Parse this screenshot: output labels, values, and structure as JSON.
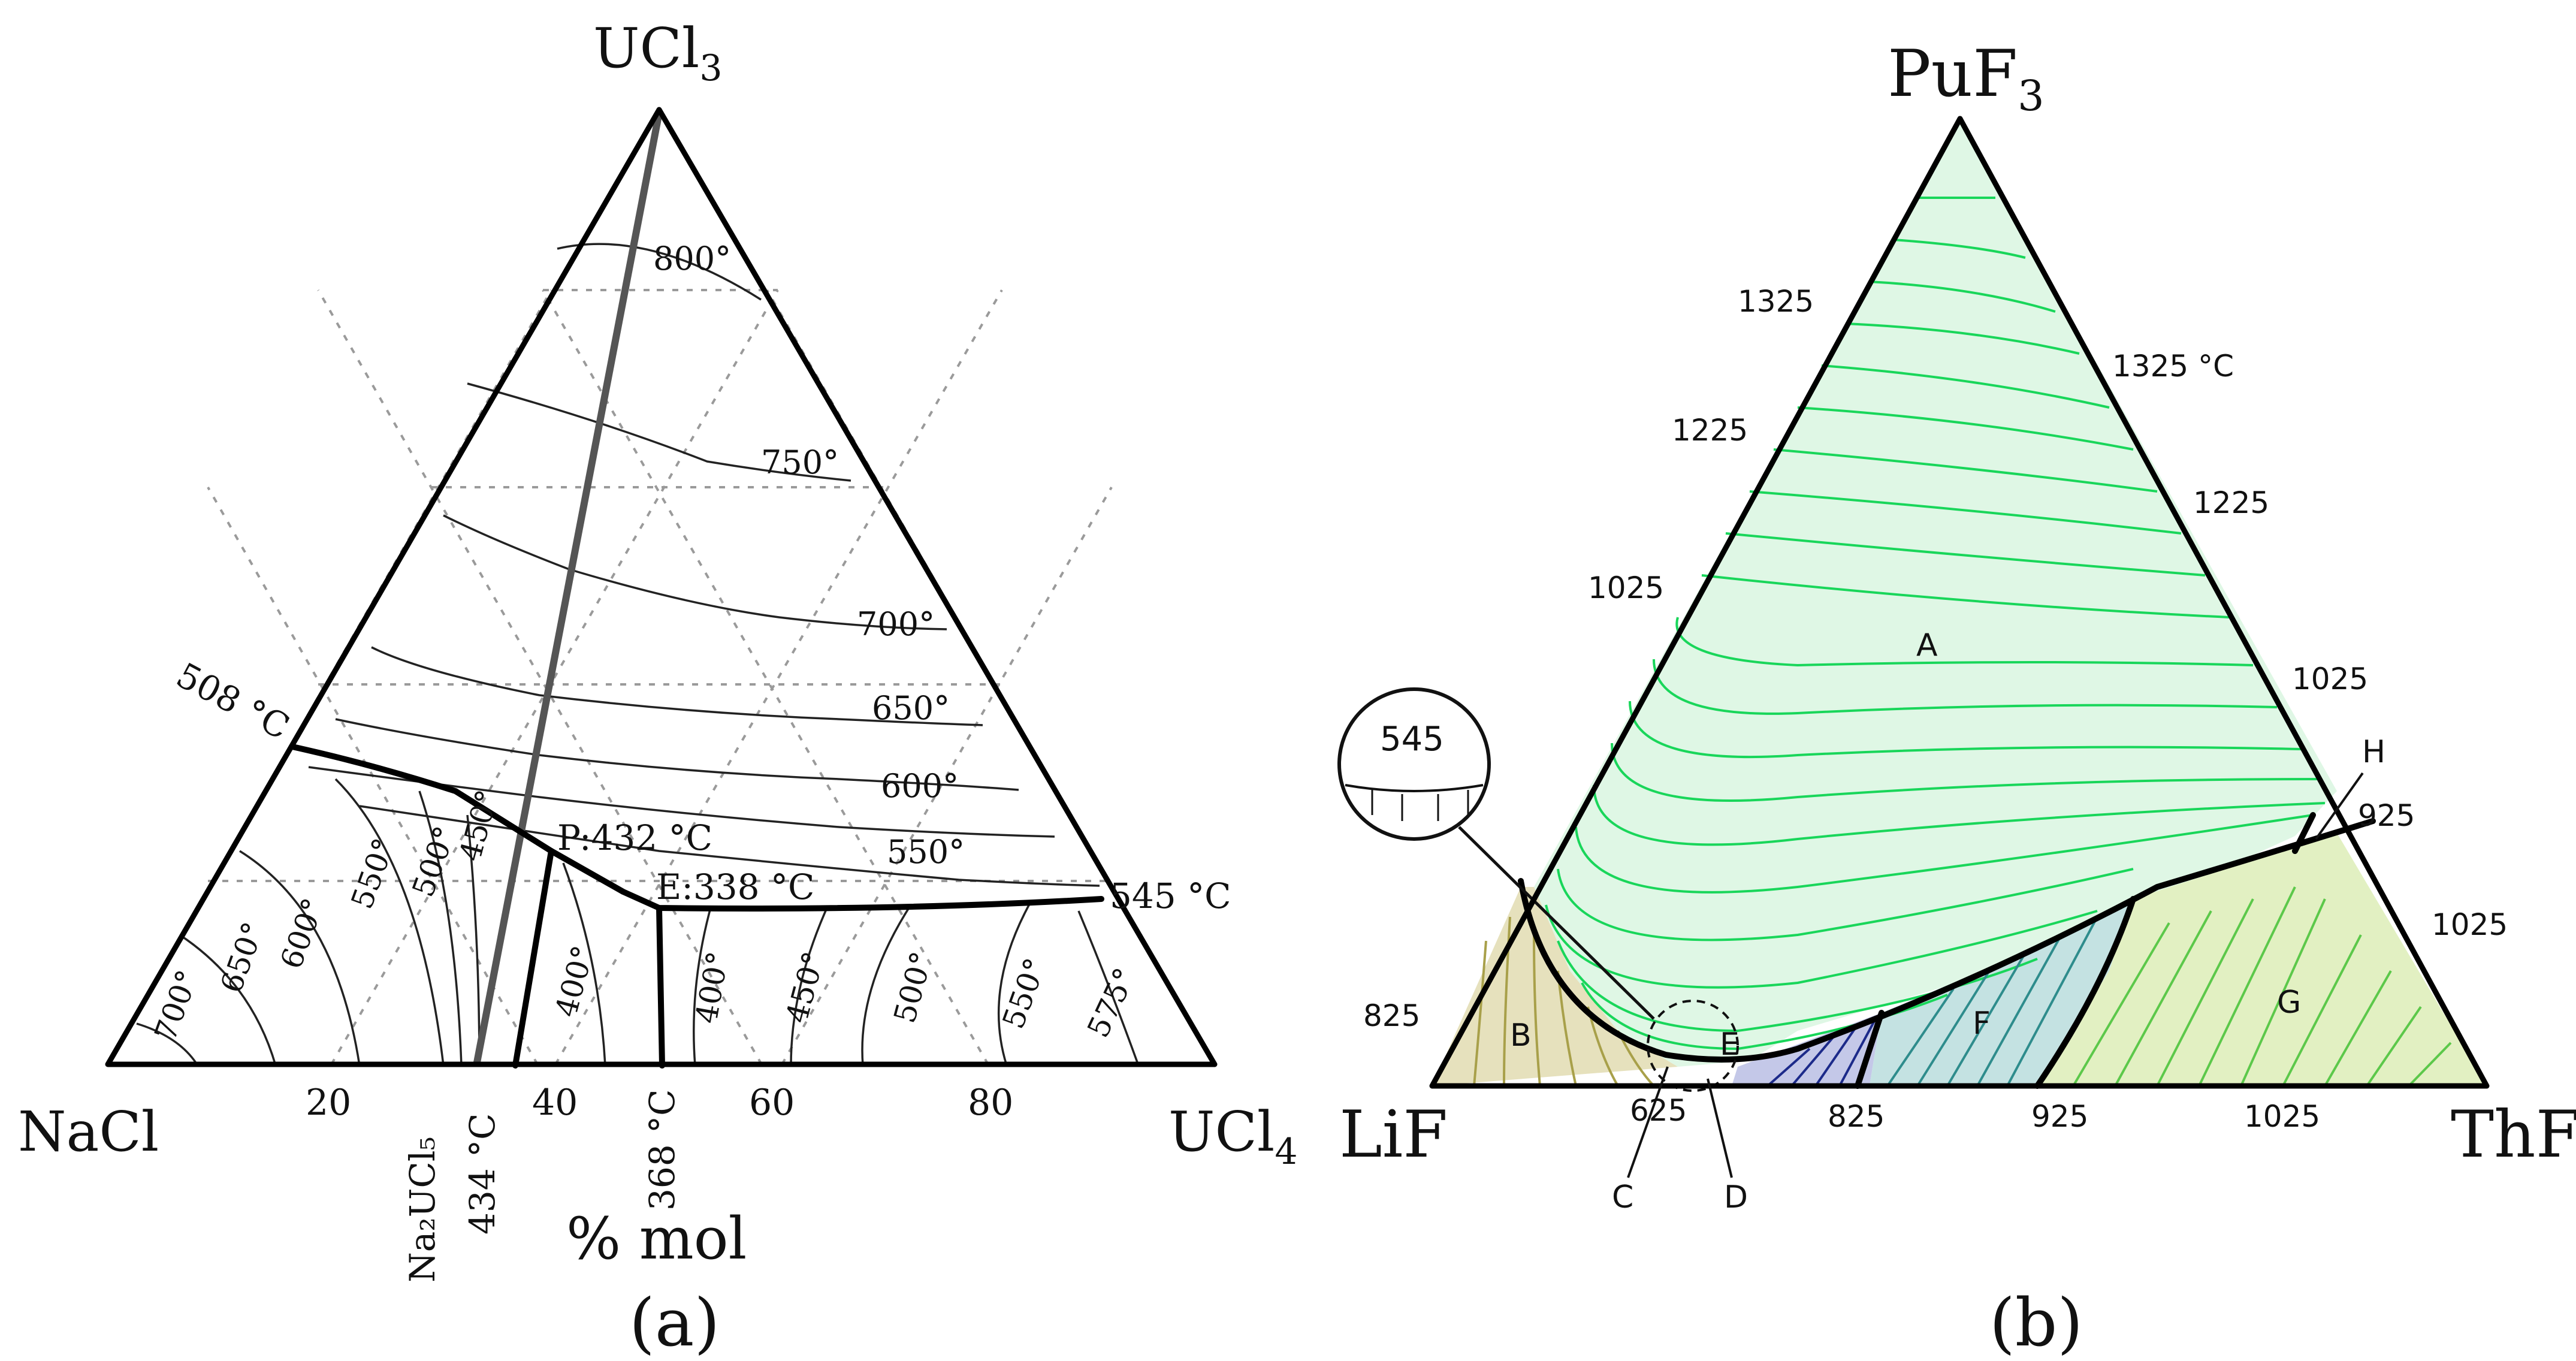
{
  "panel_a": {
    "apex_top": "UCl",
    "apex_top_sub": "3",
    "apex_left": "NaCl",
    "apex_right": "UCl",
    "apex_right_sub": "4",
    "axis_ticks": [
      "20",
      "40",
      "60",
      "80"
    ],
    "axis_label": "% mol",
    "compound_label": "Na₂UCl₅",
    "vertical_labels": [
      "434 °C",
      "368 °C"
    ],
    "left_edge_temp": "508 °C",
    "right_edge_temp": "545 °C",
    "peritectic": "P:432 °C",
    "eutectic": "E:338 °C",
    "isotherms_upper": [
      "800°",
      "750°",
      "700°",
      "650°",
      "600°",
      "550°"
    ],
    "isotherms_nacl": [
      "700°",
      "650°",
      "600°",
      "550°",
      "500°",
      "450°"
    ],
    "isotherm_400_left": "400°",
    "isotherms_ucl4": [
      "400°",
      "450°",
      "500°",
      "550°",
      "575°"
    ],
    "caption": "(a)"
  },
  "panel_b": {
    "apex_top": "PuF",
    "apex_top_sub": "3",
    "apex_left": "LiF",
    "apex_right": "ThF",
    "apex_right_sub": "4",
    "left_edge_temps": [
      "1325",
      "1225",
      "1025",
      "825"
    ],
    "right_edge_temps": [
      "1325 °C",
      "1225",
      "1025",
      "925",
      "1025"
    ],
    "bottom_edge_temps": [
      "625",
      "825",
      "925",
      "1025"
    ],
    "inset_value": "545",
    "regions": [
      "A",
      "B",
      "C",
      "D",
      "E",
      "F",
      "G",
      "H"
    ],
    "caption": "(b)",
    "colors": {
      "green": "#19d65a",
      "olive": "#a8a04a",
      "navy": "#1c2a8a",
      "teal": "#2e8c8c",
      "lime": "#b8d24a"
    }
  }
}
